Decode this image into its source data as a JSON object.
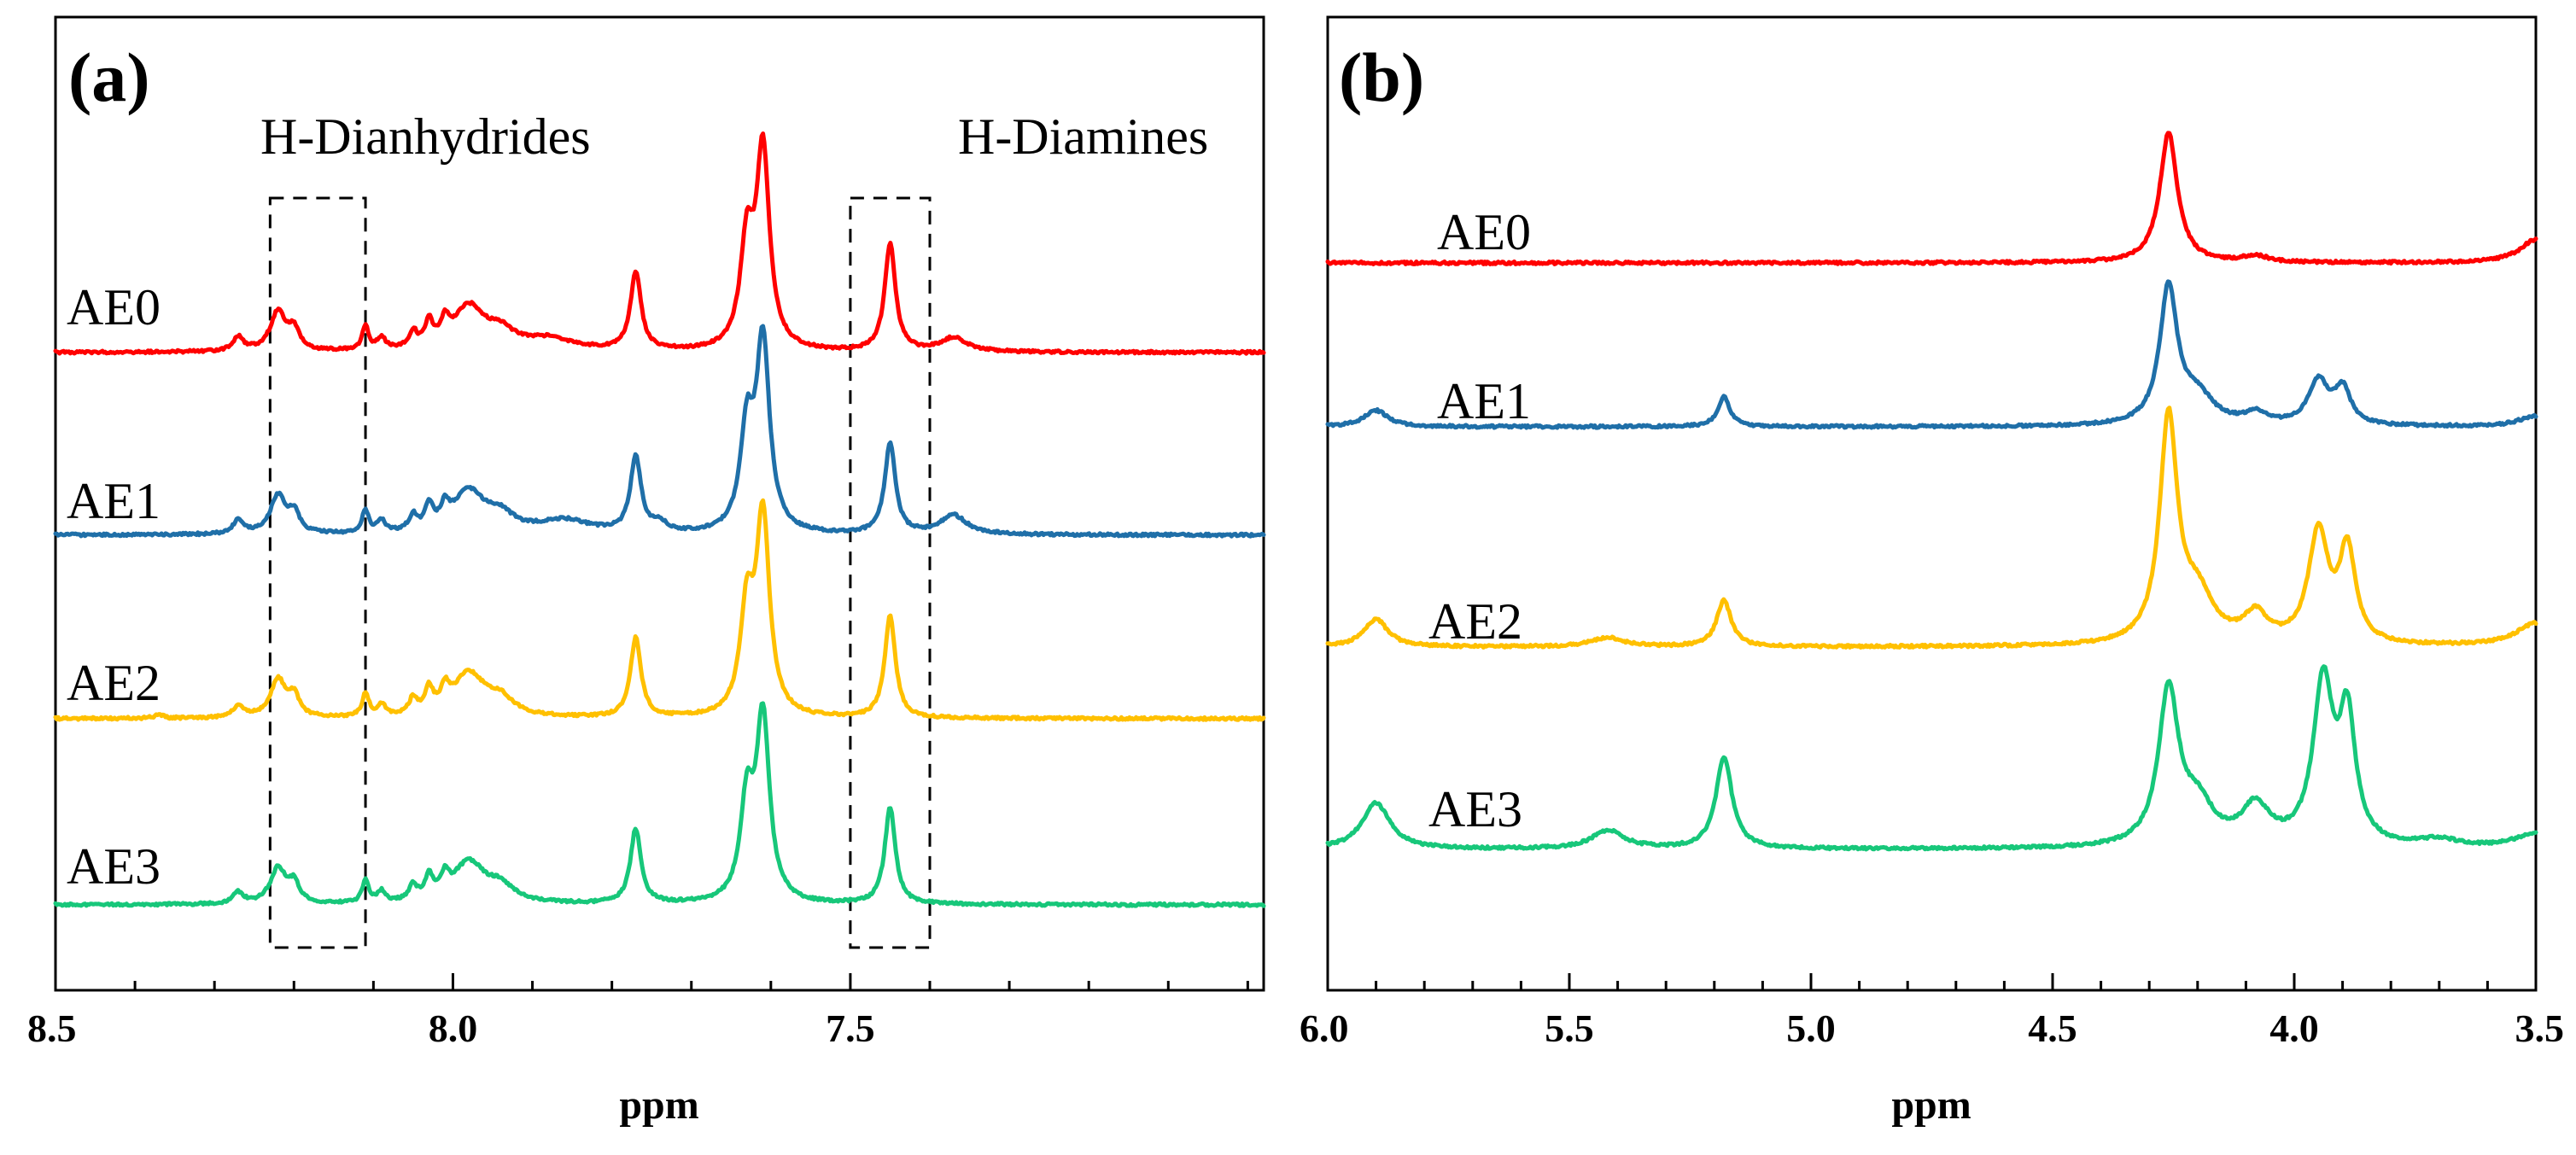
{
  "colors": {
    "AE0": "#ff0000",
    "AE1": "#1f6fa8",
    "AE2": "#ffc000",
    "AE3": "#17c77a"
  },
  "chart_data": [
    {
      "panel": "(a)",
      "type": "line",
      "xlabel": "ppm",
      "ylabel": "",
      "xlim": [
        8.5,
        6.98
      ],
      "x_reversed": true,
      "x_ticks_major": [
        "8.5",
        "8.0",
        "7.5"
      ],
      "x_ticks_major_values": [
        8.5,
        8.0,
        7.5
      ],
      "x_ticks_minor_step": 0.1,
      "annotations": [
        {
          "label": "H-Dianhydrides",
          "x_range": [
            8.23,
            8.11
          ]
        },
        {
          "label": "H-Diamines",
          "x_range": [
            7.5,
            7.4
          ]
        }
      ],
      "baseline": 0.0,
      "peaks_note": "peak list: [center_ppm, height, half-width_ppm]",
      "series": [
        {
          "name": "AE0",
          "offset": 3,
          "peaks": [
            [
              8.27,
              0.07,
              0.008
            ],
            [
              8.22,
              0.2,
              0.012
            ],
            [
              8.2,
              0.1,
              0.008
            ],
            [
              8.11,
              0.12,
              0.005
            ],
            [
              8.09,
              0.06,
              0.006
            ],
            [
              8.05,
              0.08,
              0.006
            ],
            [
              8.03,
              0.12,
              0.006
            ],
            [
              8.01,
              0.1,
              0.006
            ],
            [
              7.98,
              0.22,
              0.025
            ],
            [
              7.94,
              0.08,
              0.02
            ],
            [
              7.88,
              0.06,
              0.04
            ],
            [
              7.77,
              0.4,
              0.008
            ],
            [
              7.63,
              0.52,
              0.01
            ],
            [
              7.61,
              1.0,
              0.01
            ],
            [
              7.45,
              0.55,
              0.008
            ],
            [
              7.37,
              0.07,
              0.02
            ]
          ]
        },
        {
          "name": "AE1",
          "offset": 2,
          "peaks": [
            [
              8.27,
              0.07,
              0.008
            ],
            [
              8.22,
              0.2,
              0.012
            ],
            [
              8.2,
              0.1,
              0.008
            ],
            [
              8.11,
              0.12,
              0.005
            ],
            [
              8.09,
              0.06,
              0.006
            ],
            [
              8.05,
              0.08,
              0.006
            ],
            [
              8.03,
              0.12,
              0.006
            ],
            [
              8.01,
              0.1,
              0.006
            ],
            [
              7.98,
              0.22,
              0.025
            ],
            [
              7.94,
              0.08,
              0.02
            ],
            [
              7.86,
              0.07,
              0.04
            ],
            [
              7.77,
              0.4,
              0.008
            ],
            [
              7.74,
              0.05,
              0.01
            ],
            [
              7.63,
              0.52,
              0.01
            ],
            [
              7.61,
              1.0,
              0.01
            ],
            [
              7.45,
              0.48,
              0.008
            ],
            [
              7.37,
              0.1,
              0.02
            ]
          ]
        },
        {
          "name": "AE2",
          "offset": 1,
          "peaks": [
            [
              8.37,
              0.02,
              0.006
            ],
            [
              8.27,
              0.06,
              0.008
            ],
            [
              8.22,
              0.19,
              0.012
            ],
            [
              8.2,
              0.1,
              0.008
            ],
            [
              8.11,
              0.12,
              0.005
            ],
            [
              8.09,
              0.06,
              0.006
            ],
            [
              8.05,
              0.08,
              0.006
            ],
            [
              8.03,
              0.12,
              0.006
            ],
            [
              8.01,
              0.1,
              0.006
            ],
            [
              7.98,
              0.22,
              0.025
            ],
            [
              7.94,
              0.08,
              0.02
            ],
            [
              7.77,
              0.4,
              0.008
            ],
            [
              7.63,
              0.52,
              0.01
            ],
            [
              7.61,
              1.0,
              0.01
            ],
            [
              7.45,
              0.52,
              0.008
            ]
          ]
        },
        {
          "name": "AE3",
          "offset": 0,
          "peaks": [
            [
              8.27,
              0.06,
              0.008
            ],
            [
              8.22,
              0.19,
              0.012
            ],
            [
              8.2,
              0.1,
              0.008
            ],
            [
              8.11,
              0.12,
              0.005
            ],
            [
              8.09,
              0.06,
              0.006
            ],
            [
              8.05,
              0.08,
              0.006
            ],
            [
              8.03,
              0.12,
              0.006
            ],
            [
              8.01,
              0.1,
              0.006
            ],
            [
              7.98,
              0.22,
              0.025
            ],
            [
              7.94,
              0.08,
              0.02
            ],
            [
              7.77,
              0.4,
              0.008
            ],
            [
              7.63,
              0.52,
              0.01
            ],
            [
              7.61,
              0.98,
              0.01
            ],
            [
              7.45,
              0.52,
              0.008
            ]
          ]
        }
      ]
    },
    {
      "panel": "(b)",
      "type": "line",
      "xlabel": "ppm",
      "ylabel": "",
      "xlim": [
        6.0,
        3.5
      ],
      "x_reversed": true,
      "x_ticks_major": [
        "6.0",
        "5.5",
        "5.0",
        "4.5",
        "4.0",
        "3.5"
      ],
      "x_ticks_major_values": [
        6.0,
        5.5,
        5.0,
        4.5,
        4.0,
        3.5
      ],
      "x_ticks_minor_step": 0.1,
      "baseline": 0.0,
      "peaks_note": "peak list: [center_ppm, height, half-width_ppm]",
      "series": [
        {
          "name": "AE0",
          "offset": 3,
          "peaks": [
            [
              4.26,
              1.0,
              0.022
            ],
            [
              4.08,
              0.05,
              0.03
            ],
            [
              3.5,
              0.18,
              0.04
            ]
          ]
        },
        {
          "name": "AE1",
          "offset": 2,
          "peaks": [
            [
              5.9,
              0.12,
              0.03
            ],
            [
              5.18,
              0.22,
              0.015
            ],
            [
              4.26,
              1.0,
              0.022
            ],
            [
              4.2,
              0.2,
              0.04
            ],
            [
              4.08,
              0.08,
              0.03
            ],
            [
              3.95,
              0.32,
              0.025
            ],
            [
              3.9,
              0.26,
              0.02
            ],
            [
              3.5,
              0.08,
              0.04
            ]
          ]
        },
        {
          "name": "AE2",
          "offset": 1,
          "peaks": [
            [
              5.9,
              0.18,
              0.03
            ],
            [
              5.42,
              0.06,
              0.04
            ],
            [
              5.18,
              0.3,
              0.018
            ],
            [
              4.26,
              1.45,
              0.022
            ],
            [
              4.2,
              0.3,
              0.04
            ],
            [
              4.08,
              0.18,
              0.03
            ],
            [
              3.95,
              0.72,
              0.025
            ],
            [
              3.89,
              0.6,
              0.02
            ],
            [
              3.5,
              0.15,
              0.05
            ]
          ]
        },
        {
          "name": "AE3",
          "offset": 0,
          "peaks": [
            [
              5.9,
              0.3,
              0.035
            ],
            [
              5.42,
              0.12,
              0.04
            ],
            [
              5.18,
              0.6,
              0.02
            ],
            [
              4.26,
              1.0,
              0.025
            ],
            [
              4.2,
              0.25,
              0.04
            ],
            [
              4.08,
              0.25,
              0.035
            ],
            [
              3.94,
              1.05,
              0.025
            ],
            [
              3.89,
              0.8,
              0.02
            ],
            [
              3.7,
              0.05,
              0.05
            ],
            [
              3.5,
              0.1,
              0.05
            ]
          ]
        }
      ]
    }
  ]
}
